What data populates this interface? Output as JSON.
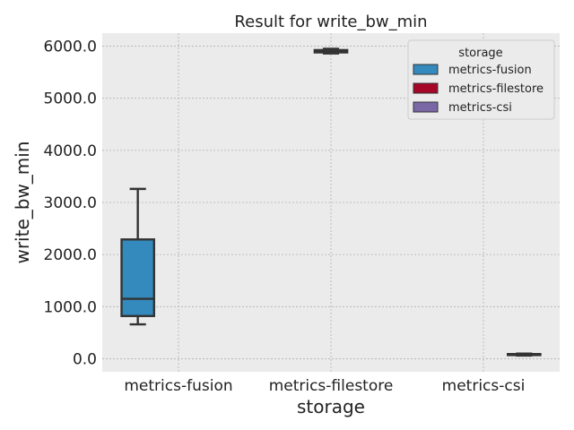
{
  "chart_data": {
    "type": "box",
    "title": "Result for write_bw_min",
    "xlabel": "storage",
    "ylabel": "write_bw_min",
    "categories": [
      "metrics-fusion",
      "metrics-filestore",
      "metrics-csi"
    ],
    "yticks": [
      "0.0",
      "1000.0",
      "2000.0",
      "3000.0",
      "4000.0",
      "5000.0",
      "6000.0"
    ],
    "ylim": [
      -250,
      6250
    ],
    "grid": true,
    "legend": {
      "title": "storage",
      "placement": "top-right",
      "entries": [
        "metrics-fusion",
        "metrics-filestore",
        "metrics-csi"
      ]
    },
    "colors": {
      "metrics-fusion": "#348ABD",
      "metrics-filestore": "#A60628",
      "metrics-csi": "#7A68A6",
      "background": "#EBEBEB",
      "lines": "#333333"
    },
    "series": [
      {
        "name": "metrics-fusion",
        "category": "metrics-fusion",
        "min": 660,
        "q1": 820,
        "median": 1150,
        "q3": 2290,
        "max": 3260
      },
      {
        "name": "metrics-filestore",
        "category": "metrics-filestore",
        "min": 5860,
        "q1": 5880,
        "median": 5910,
        "q3": 5925,
        "max": 5950
      },
      {
        "name": "metrics-csi",
        "category": "metrics-csi",
        "min": 60,
        "q1": 70,
        "median": 80,
        "q3": 90,
        "max": 100
      }
    ]
  }
}
